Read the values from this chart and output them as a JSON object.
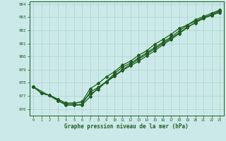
{
  "xlabel": "Graphe pression niveau de la mer (hPa)",
  "bg_color": "#cce9e9",
  "grid_color": "#aad4cc",
  "line_color": "#1e5e1e",
  "xlim": [
    -0.5,
    23.5
  ],
  "ylim": [
    975.5,
    984.2
  ],
  "yticks": [
    976,
    977,
    978,
    979,
    980,
    981,
    982,
    983,
    984
  ],
  "xticks": [
    0,
    1,
    2,
    3,
    4,
    5,
    6,
    7,
    8,
    9,
    10,
    11,
    12,
    13,
    14,
    15,
    16,
    17,
    18,
    19,
    20,
    21,
    22,
    23
  ],
  "line1_x": [
    0,
    1,
    2,
    3,
    4,
    5,
    6,
    7,
    8,
    9,
    10,
    11,
    12,
    13,
    14,
    15,
    16,
    17,
    18,
    19,
    20,
    21,
    22,
    23
  ],
  "line1_y": [
    977.7,
    977.2,
    977.05,
    976.65,
    976.35,
    976.35,
    976.35,
    977.3,
    977.65,
    978.05,
    978.5,
    978.95,
    979.3,
    979.65,
    980.05,
    980.45,
    980.9,
    981.3,
    981.75,
    982.2,
    982.6,
    982.9,
    983.15,
    983.35
  ],
  "line2_x": [
    0,
    1,
    2,
    3,
    4,
    5,
    6,
    7,
    8,
    9,
    10,
    11,
    12,
    13,
    14,
    15,
    16,
    17,
    18,
    19,
    20,
    21,
    22,
    23
  ],
  "line2_y": [
    977.7,
    977.2,
    977.05,
    976.75,
    976.45,
    976.45,
    976.55,
    977.55,
    977.95,
    978.45,
    978.85,
    979.35,
    979.65,
    980.1,
    980.45,
    980.95,
    981.3,
    981.7,
    982.15,
    982.4,
    982.7,
    982.95,
    983.2,
    983.45
  ],
  "line3_x": [
    0,
    1,
    2,
    3,
    4,
    5,
    6,
    7,
    8,
    9,
    10,
    11,
    12,
    13,
    14,
    15,
    16,
    17,
    18,
    19,
    20,
    21,
    22,
    23
  ],
  "line3_y": [
    977.7,
    977.2,
    977.05,
    976.75,
    976.45,
    976.45,
    976.55,
    977.15,
    977.5,
    978.1,
    978.7,
    979.2,
    979.5,
    979.9,
    980.3,
    980.7,
    981.1,
    981.5,
    981.95,
    982.4,
    982.8,
    983.05,
    983.3,
    983.55
  ],
  "line4_x": [
    0,
    3,
    4,
    5,
    6,
    7,
    8,
    9,
    10,
    11,
    12,
    13,
    14,
    15,
    16,
    17,
    18,
    19,
    20,
    21,
    22,
    23
  ],
  "line4_y": [
    977.7,
    976.65,
    976.3,
    976.3,
    976.3,
    976.95,
    977.65,
    978.1,
    978.55,
    979.0,
    979.4,
    979.8,
    980.2,
    980.6,
    981.0,
    981.4,
    981.8,
    982.25,
    982.55,
    982.95,
    983.15,
    983.5
  ]
}
